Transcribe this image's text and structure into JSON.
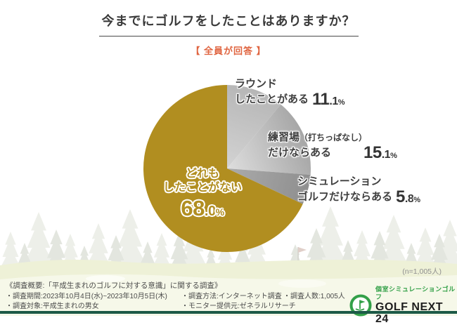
{
  "header": {
    "title": "今までにゴルフをしたことはありますか？",
    "badge": "【 全員が回答 】"
  },
  "chart_data": {
    "type": "pie",
    "title": "今までにゴルフをしたことはありますか？",
    "annotation": "全員が回答",
    "n_label": "(n=1,005人)",
    "start_angle_deg": 0,
    "direction": "clockwise",
    "center": [
      323,
      240
    ],
    "radius": 119,
    "slices": [
      {
        "label": "ラウンドしたことがある",
        "value": 11.1,
        "color_inner": "#d3d3d3",
        "color_outer": "#b6b6b6"
      },
      {
        "label": "練習場（打ちっぱなし）だけならある",
        "value": 15.1,
        "color_inner": "#dedede",
        "color_outer": "#a6a6a6"
      },
      {
        "label": "シミュレーションゴルフだけならある",
        "value": 5.8,
        "color_inner": "#ababab",
        "color_outer": "#8f8f8f"
      },
      {
        "label": "どれもしたことがない",
        "value": 68.0,
        "color_inner": "#b18e20",
        "color_outer": "#b18e20"
      }
    ]
  },
  "labels": {
    "round": {
      "line1": "ラウンド",
      "line2": "したことがある"
    },
    "practice": {
      "line1a": "練習場",
      "line1b": "（打ちっぱなし）",
      "line2": "だけならある"
    },
    "simulation": {
      "line1": "シミュレーション",
      "line2": "ゴルフだけならある"
    },
    "none": {
      "line1": "どれも",
      "line2": "したことがない"
    }
  },
  "footer": {
    "overview": "《調査概要:「平成生まれのゴルフに対する意識」に関する調査》",
    "period": "・調査期間:2023年10月4日(水)~2023年10月5日(木)",
    "target": "・調査対象:平成生まれの男女",
    "method": "・調査方法:インターネット調査",
    "monitor": "・モニター提供元:ゼネラルリサーチ",
    "count": "・調査人数:1,005人"
  },
  "logo": {
    "tagline": "個室シミュレーションゴルフ",
    "name": "GOLF NEXT 24"
  },
  "colors": {
    "gold": "#b18e20",
    "badge_orange": "#e06541",
    "logo_green": "#33a048",
    "bottom_bar_green": "#1d5a47",
    "tree_silhouette": "#e3e6df",
    "hill_back": "#eef1d7",
    "hill_front": "#f6f8e9"
  }
}
